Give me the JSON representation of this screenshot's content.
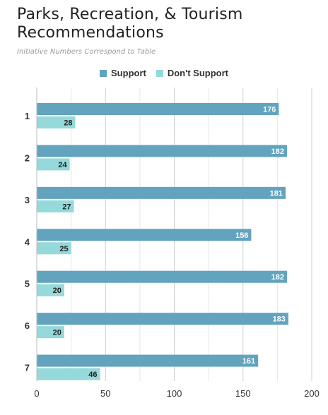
{
  "chart_data": {
    "type": "bar",
    "orientation": "horizontal",
    "title": "Parks, Recreation, & Tourism Recommendations",
    "subtitle": "Initiative Numbers Correspond to Table",
    "categories": [
      "1",
      "2",
      "3",
      "4",
      "5",
      "6",
      "7"
    ],
    "series": [
      {
        "name": "Support",
        "color": "#62a3be",
        "values": [
          176,
          182,
          181,
          156,
          182,
          183,
          161
        ]
      },
      {
        "name": "Don't Support",
        "color": "#95d9da",
        "values": [
          28,
          24,
          27,
          25,
          20,
          20,
          46
        ]
      }
    ],
    "xlim": [
      0,
      200
    ],
    "xticks": [
      0,
      50,
      100,
      150,
      200
    ],
    "grid": true,
    "legend": "top-center"
  }
}
